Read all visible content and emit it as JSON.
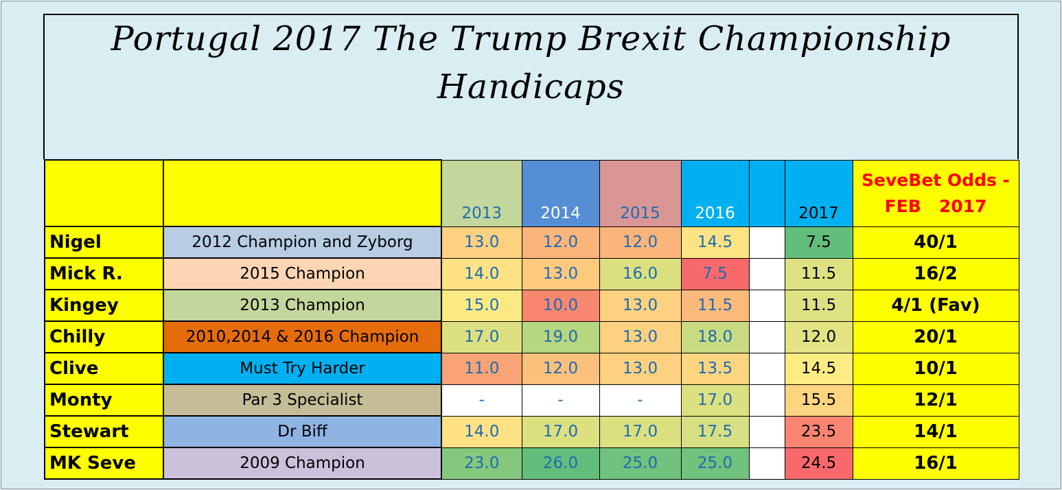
{
  "title": {
    "line1": "Portugal 2017 The Trump Brexit Championship",
    "line2": "Handicaps"
  },
  "header": {
    "years": [
      "2013",
      "2014",
      "2015",
      "2016"
    ],
    "year_2017": "2017",
    "odds_line1": "SeveBet Odds -",
    "odds_line2": "FEB   2017",
    "colors": {
      "2013": "#c3d69b",
      "2014": "#558ed5",
      "2015": "#d99694",
      "2016": "#00b0f0",
      "gap": "#00b0f0",
      "2017": "#00b0f0",
      "odds": "#ffff00",
      "name": "#ffff00"
    }
  },
  "rows": [
    {
      "name": "Nigel",
      "desc": "2012 Champion and Zyborg",
      "desc_color": "#b8cce4",
      "values": [
        "13.0",
        "12.0",
        "12.0",
        "14.5"
      ],
      "value_colors": [
        "#fdd17f",
        "#fbb479",
        "#fbb479",
        "#fde383"
      ],
      "v2017": "7.5",
      "v2017_color": "#63be7b",
      "odds": "40/1"
    },
    {
      "name": "Mick R.",
      "desc": "2015 Champion",
      "desc_color": "#fcd5b5",
      "values": [
        "14.0",
        "13.0",
        "16.0",
        "7.5"
      ],
      "value_colors": [
        "#fee283",
        "#fdc97d",
        "#dce081",
        "#f8696b"
      ],
      "v2017": "11.5",
      "v2017_color": "#dde182",
      "odds": "16/2"
    },
    {
      "name": "Kingey",
      "desc": "2013 Champion",
      "desc_color": "#c3d69b",
      "values": [
        "15.0",
        "10.0",
        "13.0",
        "11.5"
      ],
      "value_colors": [
        "#fde984",
        "#f8876f",
        "#fdd17f",
        "#fbba7a"
      ],
      "v2017": "11.5",
      "v2017_color": "#dde182",
      "odds": "4/1  (Fav)"
    },
    {
      "name": "Chilly",
      "desc": "2010,2014 & 2016 Champion",
      "desc_color": "#e46c0a",
      "values": [
        "17.0",
        "19.0",
        "13.0",
        "18.0"
      ],
      "value_colors": [
        "#dce081",
        "#b6d67f",
        "#fdd17f",
        "#c8db80"
      ],
      "v2017": "12.0",
      "v2017_color": "#e2e383",
      "odds": "20/1"
    },
    {
      "name": "Clive",
      "desc": "Must Try Harder",
      "desc_color": "#00b0f0",
      "values": [
        "11.0",
        "12.0",
        "13.0",
        "13.5"
      ],
      "value_colors": [
        "#f9a376",
        "#fbc07b",
        "#fdd17f",
        "#fdd480"
      ],
      "v2017": "14.5",
      "v2017_color": "#fdec84",
      "odds": "10/1"
    },
    {
      "name": "Monty",
      "desc": "Par 3 Specialist",
      "desc_color": "#c4bd97",
      "values": [
        "-",
        "-",
        "-",
        "17.0"
      ],
      "value_colors": [
        "#ffffff",
        "#ffffff",
        "#ffffff",
        "#dce081"
      ],
      "v2017": "15.5",
      "v2017_color": "#fdd480",
      "odds": "12/1"
    },
    {
      "name": "Stewart",
      "desc": "Dr Biff",
      "desc_color": "#8eb4e3",
      "values": [
        "14.0",
        "17.0",
        "17.0",
        "17.5"
      ],
      "value_colors": [
        "#fee283",
        "#dce081",
        "#dce081",
        "#d6df81"
      ],
      "v2017": "23.5",
      "v2017_color": "#f98570",
      "odds": "14/1"
    },
    {
      "name": "MK Seve",
      "desc": "2009 Champion",
      "desc_color": "#ccc1da",
      "values": [
        "23.0",
        "26.0",
        "25.0",
        "25.0"
      ],
      "value_colors": [
        "#85c87d",
        "#63be7b",
        "#70c27c",
        "#70c27c"
      ],
      "v2017": "24.5",
      "v2017_color": "#f8696b",
      "odds": "16/1"
    }
  ]
}
